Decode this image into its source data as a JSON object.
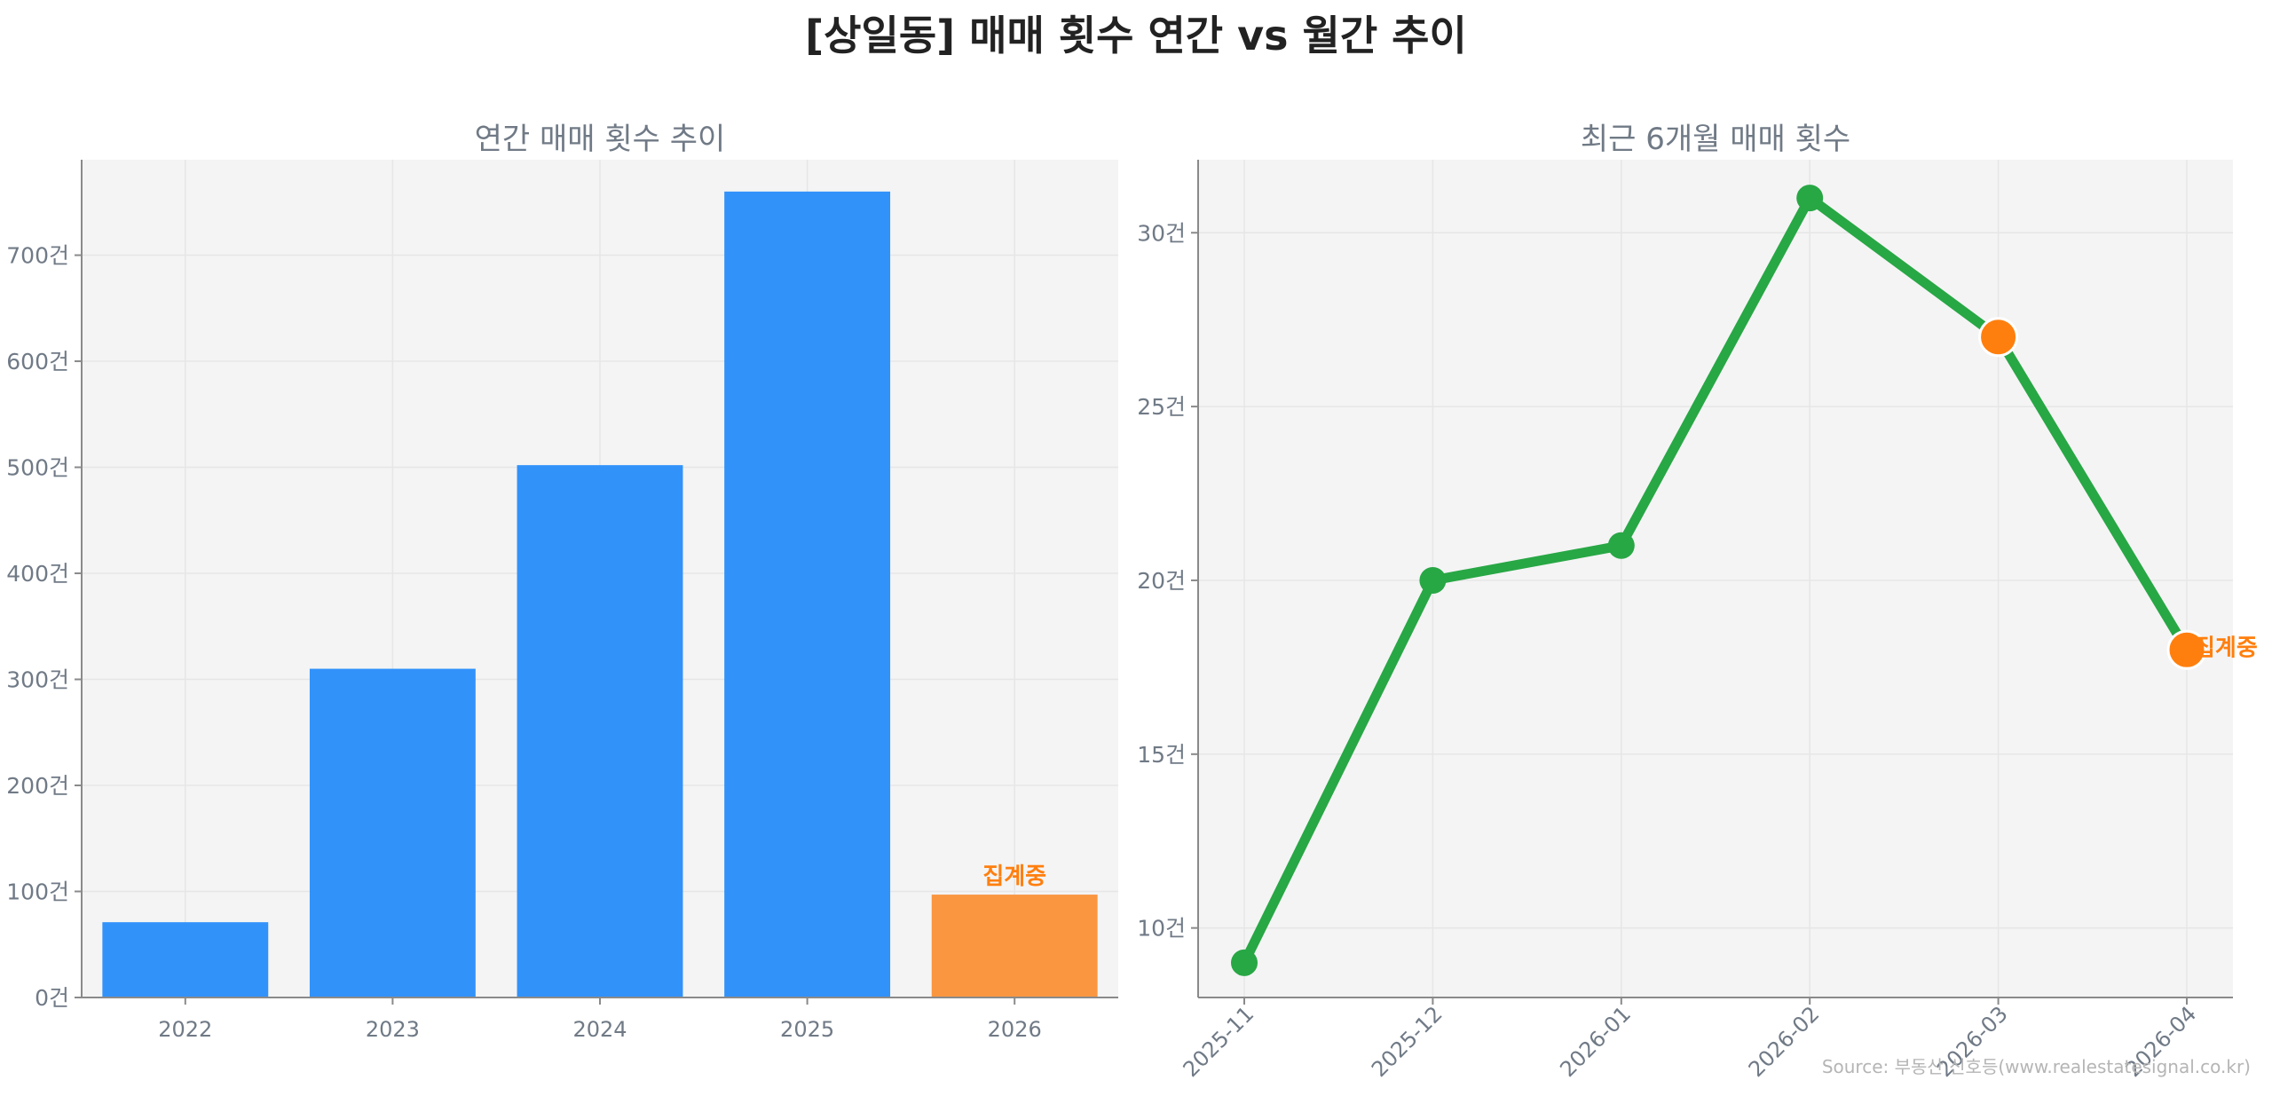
{
  "title": "[상일동] 매매 횟수 연간 vs 월간 추이",
  "source": "Source: 부동산 신호등(www.realestatesignal.co.kr)",
  "colors": {
    "bar": "#3192fa",
    "bar_highlight": "#fa9640",
    "line": "#28a745",
    "highlight_marker": "#ff7f0e",
    "plot_bg": "#f4f4f4",
    "text": "#707a86"
  },
  "chart_data": [
    {
      "type": "bar",
      "title": "연간 매매 횟수 추이",
      "categories": [
        "2022",
        "2023",
        "2024",
        "2025",
        "2026"
      ],
      "values": [
        71,
        310,
        502,
        760,
        97
      ],
      "highlight_index": 4,
      "annotation": "집계중",
      "ylim": [
        0,
        790
      ],
      "yticks": [
        0,
        100,
        200,
        300,
        400,
        500,
        600,
        700
      ],
      "ytick_suffix": "건",
      "grid": true
    },
    {
      "type": "line",
      "title": "최근 6개월 매매 횟수",
      "x": [
        "2025-11",
        "2025-12",
        "2026-01",
        "2026-02",
        "2026-03",
        "2026-04"
      ],
      "values": [
        9,
        20,
        21,
        31,
        27,
        18
      ],
      "highlight_indices": [
        4,
        5
      ],
      "annotation": "집계중",
      "ylim": [
        8,
        32.1
      ],
      "yticks": [
        10,
        15,
        20,
        25,
        30
      ],
      "ytick_suffix": "건",
      "grid": true
    }
  ]
}
